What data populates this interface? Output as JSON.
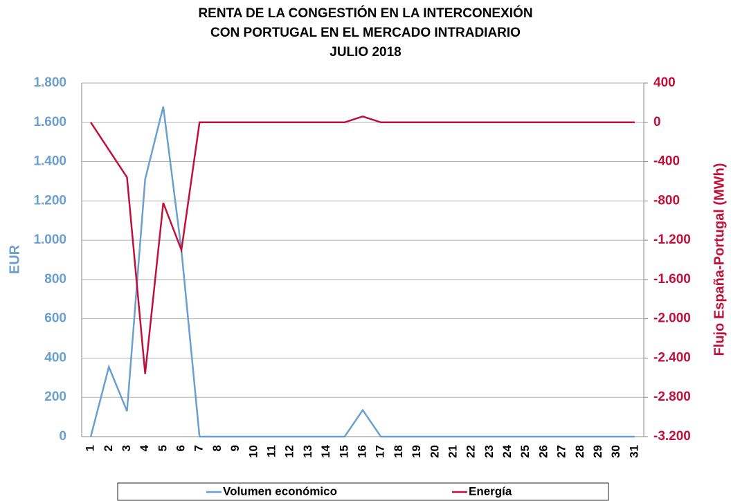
{
  "chart_data": {
    "type": "line",
    "title": [
      "RENTA DE LA CONGESTIÓN EN LA INTERCONEXIÓN",
      "CON PORTUGAL EN EL MERCADO INTRADIARIO",
      "JULIO 2018"
    ],
    "ylabel": "EUR",
    "y2label": "Flujo España-Portugal (MWh)",
    "categories": [
      "1",
      "2",
      "3",
      "4",
      "5",
      "6",
      "7",
      "8",
      "9",
      "10",
      "11",
      "12",
      "13",
      "14",
      "15",
      "16",
      "17",
      "18",
      "19",
      "20",
      "21",
      "22",
      "23",
      "24",
      "25",
      "26",
      "27",
      "28",
      "29",
      "30",
      "31"
    ],
    "series": [
      {
        "name": "Volumen económico",
        "color": "#6a9fd0",
        "values": [
          0,
          355,
          130,
          1310,
          1680,
          950,
          0,
          0,
          0,
          0,
          0,
          0,
          0,
          0,
          0,
          135,
          0,
          0,
          0,
          0,
          0,
          0,
          0,
          0,
          0,
          0,
          0,
          0,
          0,
          0,
          0
        ]
      },
      {
        "name": "Energía",
        "color": "#c0103a",
        "axis": "y2",
        "values": [
          0,
          -280,
          -560,
          -2560,
          -820,
          -1300,
          0,
          0,
          0,
          0,
          0,
          0,
          0,
          0,
          0,
          60,
          0,
          0,
          0,
          0,
          0,
          0,
          0,
          0,
          0,
          0,
          0,
          0,
          0,
          0,
          0
        ]
      }
    ],
    "ylim": [
      0,
      1800
    ],
    "yticks": [
      0,
      200,
      400,
      600,
      800,
      {
        "value": 1000,
        "label": "1.000"
      },
      {
        "value": 1200,
        "label": "1.200"
      },
      {
        "value": 1400,
        "label": "1.400"
      },
      {
        "value": 1600,
        "label": "1.600"
      },
      {
        "value": 1800,
        "label": "1.800"
      }
    ],
    "y2lim": [
      -3200,
      400
    ],
    "y2ticks": [
      {
        "value": -3200,
        "label": "-3.200"
      },
      {
        "value": -2800,
        "label": "-2.800"
      },
      {
        "value": -2400,
        "label": "-2.400"
      },
      {
        "value": -2000,
        "label": "-2.000"
      },
      {
        "value": -1600,
        "label": "-1.600"
      },
      {
        "value": -1200,
        "label": "-1.200"
      },
      -800,
      -400,
      0,
      400
    ],
    "grid": true,
    "legend": "bottom"
  }
}
